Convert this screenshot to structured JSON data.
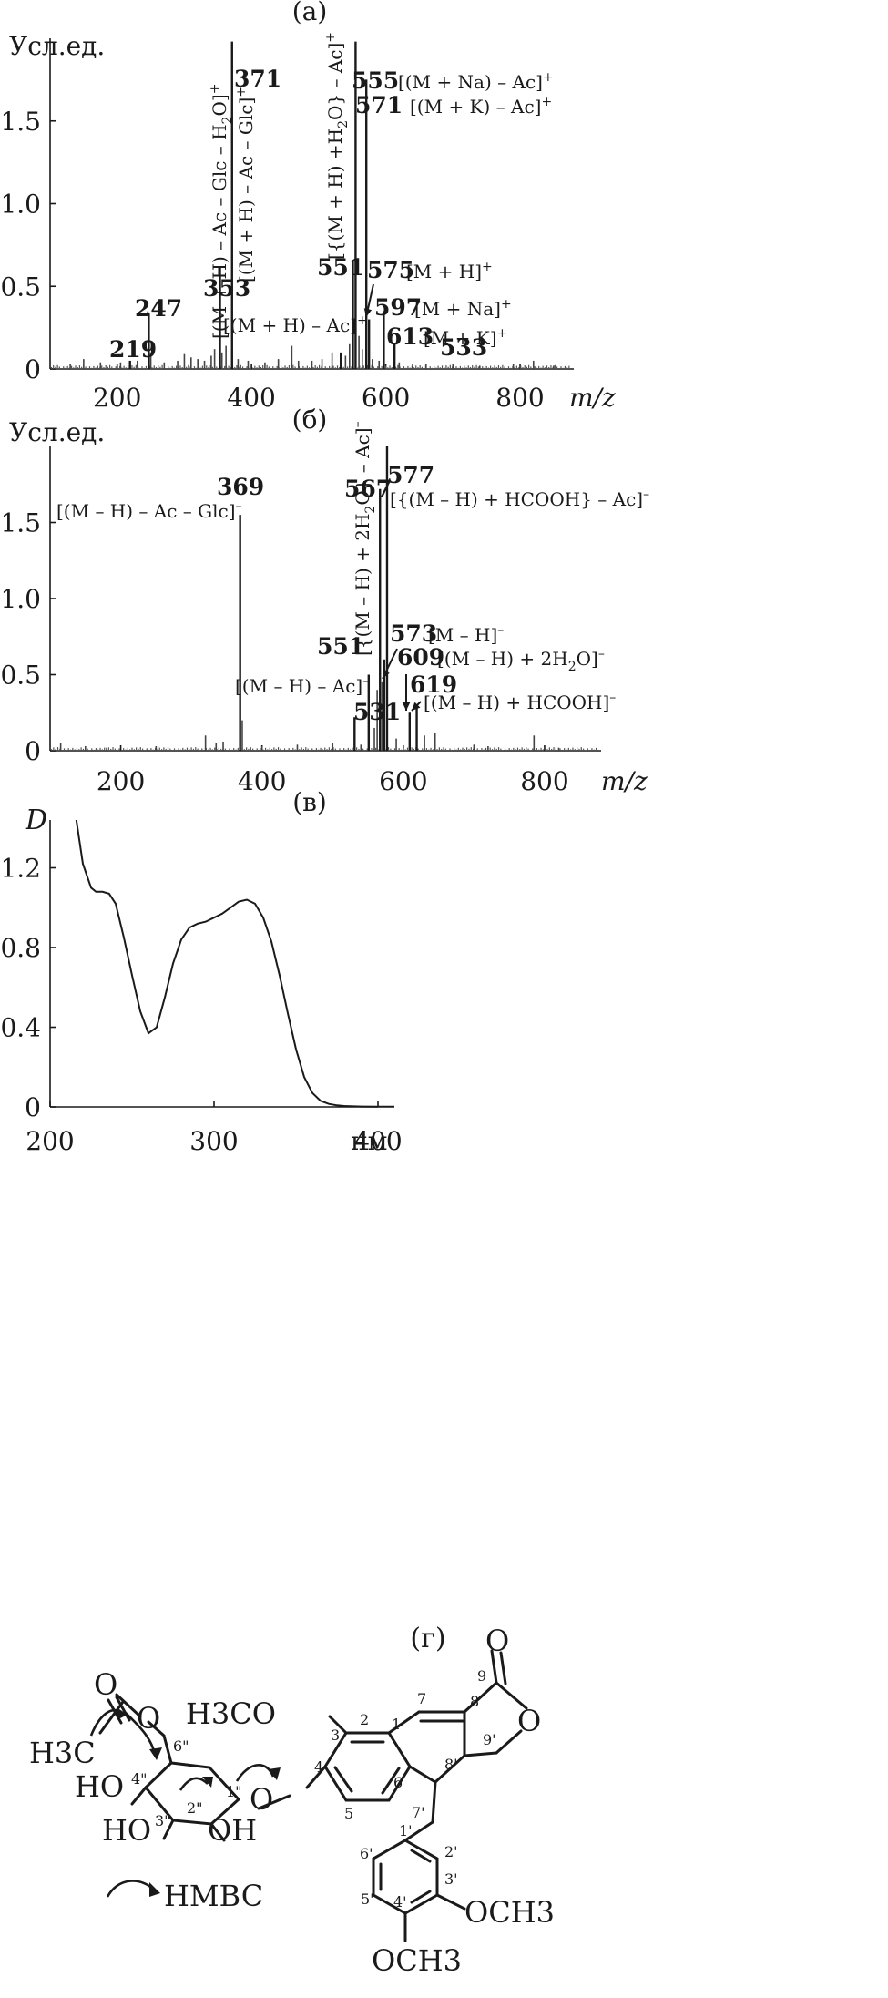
{
  "chart_data": [
    {
      "type": "bar",
      "panel_label": "(а)",
      "ylabel": "Усл.ед.",
      "xlabel": "m/z",
      "xlim": [
        100,
        880
      ],
      "ylim": [
        0,
        2.0
      ],
      "xticks": [
        "200",
        "400",
        "600",
        "800"
      ],
      "yticks": [
        "0",
        "0.5",
        "1.0",
        "1.5"
      ],
      "peaks": [
        {
          "x": 219,
          "y": 0.05,
          "label": "219",
          "ann": ""
        },
        {
          "x": 247,
          "y": 0.34,
          "label": "247",
          "ann": ""
        },
        {
          "x": 353,
          "y": 0.62,
          "label": "353",
          "ann": "[(M + H) – Ac – Glc – H2O]+"
        },
        {
          "x": 371,
          "y": 1.98,
          "label": "371",
          "ann": "[(M + H) – Ac – Glc]+"
        },
        {
          "x": 533,
          "y": 0.1,
          "label": "533",
          "ann": "[(M + H) – Ac]+"
        },
        {
          "x": 551,
          "y": 0.65,
          "label": "551",
          "ann": "[{(M + H) +H2O} – Ac]+"
        },
        {
          "x": 555,
          "y": 1.98,
          "label": "555",
          "ann": "[(M + Na) – Ac]+"
        },
        {
          "x": 571,
          "y": 1.75,
          "label": "571",
          "ann": "[(M + K) – Ac]+"
        },
        {
          "x": 575,
          "y": 0.3,
          "label": "575",
          "ann": "[M + H]+"
        },
        {
          "x": 597,
          "y": 0.35,
          "label": "597",
          "ann": "[M + Na]+"
        },
        {
          "x": 613,
          "y": 0.15,
          "label": "613",
          "ann": "[M + K]+"
        }
      ],
      "minor_peaks": [
        [
          130,
          0.03
        ],
        [
          150,
          0.06
        ],
        [
          175,
          0.04
        ],
        [
          205,
          0.04
        ],
        [
          230,
          0.05
        ],
        [
          250,
          0.1
        ],
        [
          270,
          0.04
        ],
        [
          290,
          0.05
        ],
        [
          300,
          0.09
        ],
        [
          310,
          0.07
        ],
        [
          320,
          0.06
        ],
        [
          330,
          0.05
        ],
        [
          340,
          0.08
        ],
        [
          345,
          0.12
        ],
        [
          356,
          0.1
        ],
        [
          362,
          0.14
        ],
        [
          380,
          0.06
        ],
        [
          395,
          0.05
        ],
        [
          420,
          0.04
        ],
        [
          440,
          0.06
        ],
        [
          460,
          0.14
        ],
        [
          470,
          0.05
        ],
        [
          490,
          0.05
        ],
        [
          505,
          0.06
        ],
        [
          520,
          0.1
        ],
        [
          540,
          0.08
        ],
        [
          546,
          0.15
        ],
        [
          560,
          0.2
        ],
        [
          565,
          0.12
        ],
        [
          580,
          0.06
        ],
        [
          590,
          0.05
        ],
        [
          620,
          0.04
        ],
        [
          640,
          0.03
        ],
        [
          660,
          0.03
        ],
        [
          700,
          0.03
        ],
        [
          740,
          0.02
        ],
        [
          790,
          0.03
        ],
        [
          820,
          0.05
        ],
        [
          850,
          0.02
        ]
      ]
    },
    {
      "type": "bar",
      "panel_label": "(б)",
      "ylabel": "Усл.ед.",
      "xlabel": "m/z",
      "xlim": [
        100,
        880
      ],
      "ylim": [
        0,
        2.0
      ],
      "xticks": [
        "200",
        "400",
        "600",
        "800"
      ],
      "yticks": [
        "0",
        "0.5",
        "1.0",
        "1.5"
      ],
      "peaks": [
        {
          "x": 369,
          "y": 1.55,
          "label": "369",
          "ann": "[(M – H) – Ac – Glc]–"
        },
        {
          "x": 531,
          "y": 0.22,
          "label": "531",
          "ann": "[(M – H) – Ac]–"
        },
        {
          "x": 551,
          "y": 0.5,
          "label": "551",
          "ann": ""
        },
        {
          "x": 567,
          "y": 1.72,
          "label": "567",
          "ann": "[{(M – H) + 2H2O} – Ac]–"
        },
        {
          "x": 573,
          "y": 0.6,
          "label": "573",
          "ann": "[M – H]–"
        },
        {
          "x": 577,
          "y": 2.0,
          "label": "577",
          "ann": "[{(M – H) + HCOOH} – Ac]–"
        },
        {
          "x": 609,
          "y": 0.25,
          "label": "609",
          "ann": "[(M – H) + 2H2O]–"
        },
        {
          "x": 619,
          "y": 0.28,
          "label": "619",
          "ann": "[(M – H) + HCOOH]–"
        }
      ],
      "minor_peaks": [
        [
          115,
          0.05
        ],
        [
          150,
          0.03
        ],
        [
          180,
          0.02
        ],
        [
          250,
          0.03
        ],
        [
          320,
          0.1
        ],
        [
          335,
          0.05
        ],
        [
          345,
          0.06
        ],
        [
          372,
          0.2
        ],
        [
          400,
          0.03
        ],
        [
          450,
          0.04
        ],
        [
          500,
          0.05
        ],
        [
          540,
          0.04
        ],
        [
          559,
          0.15
        ],
        [
          563,
          0.4
        ],
        [
          570,
          0.45
        ],
        [
          590,
          0.08
        ],
        [
          630,
          0.1
        ],
        [
          645,
          0.12
        ],
        [
          700,
          0.04
        ],
        [
          720,
          0.03
        ],
        [
          785,
          0.1
        ],
        [
          820,
          0.02
        ]
      ]
    },
    {
      "type": "line",
      "panel_label": "(в)",
      "ylabel": "D",
      "xlabel": "нм",
      "xlim": [
        200,
        400
      ],
      "ylim": [
        0,
        1.44
      ],
      "xticks": [
        "200",
        "300",
        "400"
      ],
      "yticks": [
        "0",
        "0.4",
        "0.8",
        "1.2"
      ],
      "x": [
        216,
        220,
        225,
        228,
        232,
        236,
        240,
        245,
        250,
        255,
        260,
        265,
        270,
        275,
        280,
        285,
        290,
        295,
        300,
        305,
        310,
        315,
        320,
        325,
        330,
        335,
        340,
        345,
        350,
        355,
        360,
        365,
        370,
        375,
        380,
        390,
        400,
        410
      ],
      "y": [
        1.44,
        1.22,
        1.1,
        1.08,
        1.08,
        1.07,
        1.02,
        0.85,
        0.66,
        0.48,
        0.37,
        0.4,
        0.55,
        0.72,
        0.84,
        0.9,
        0.92,
        0.93,
        0.95,
        0.97,
        1.0,
        1.03,
        1.04,
        1.02,
        0.95,
        0.83,
        0.66,
        0.47,
        0.29,
        0.15,
        0.07,
        0.03,
        0.015,
        0.008,
        0.004,
        0.002,
        0.001,
        0.001
      ]
    }
  ],
  "panel_g": {
    "label": "(г)",
    "legend": "HMBC",
    "groups": {
      "och3_top": "H3CO",
      "och3_a": "OCH3",
      "och3_b": "OCH3",
      "ch3": "H3C"
    },
    "atoms": {
      "o_carbonyl_left": "O",
      "o_ring_left": "O",
      "ho1": "HO",
      "ho2": "HO",
      "oh": "OH",
      "o_link": "O",
      "o_lac": "O",
      "o_ring_right": "O"
    },
    "numbers": [
      "1",
      "2",
      "3",
      "4",
      "5",
      "6",
      "7",
      "8",
      "8'",
      "9",
      "9'",
      "7'",
      "1'",
      "2'",
      "3'",
      "4'",
      "5'",
      "6'",
      "1\"",
      "2\"",
      "3\"",
      "4\"",
      "6\""
    ]
  }
}
